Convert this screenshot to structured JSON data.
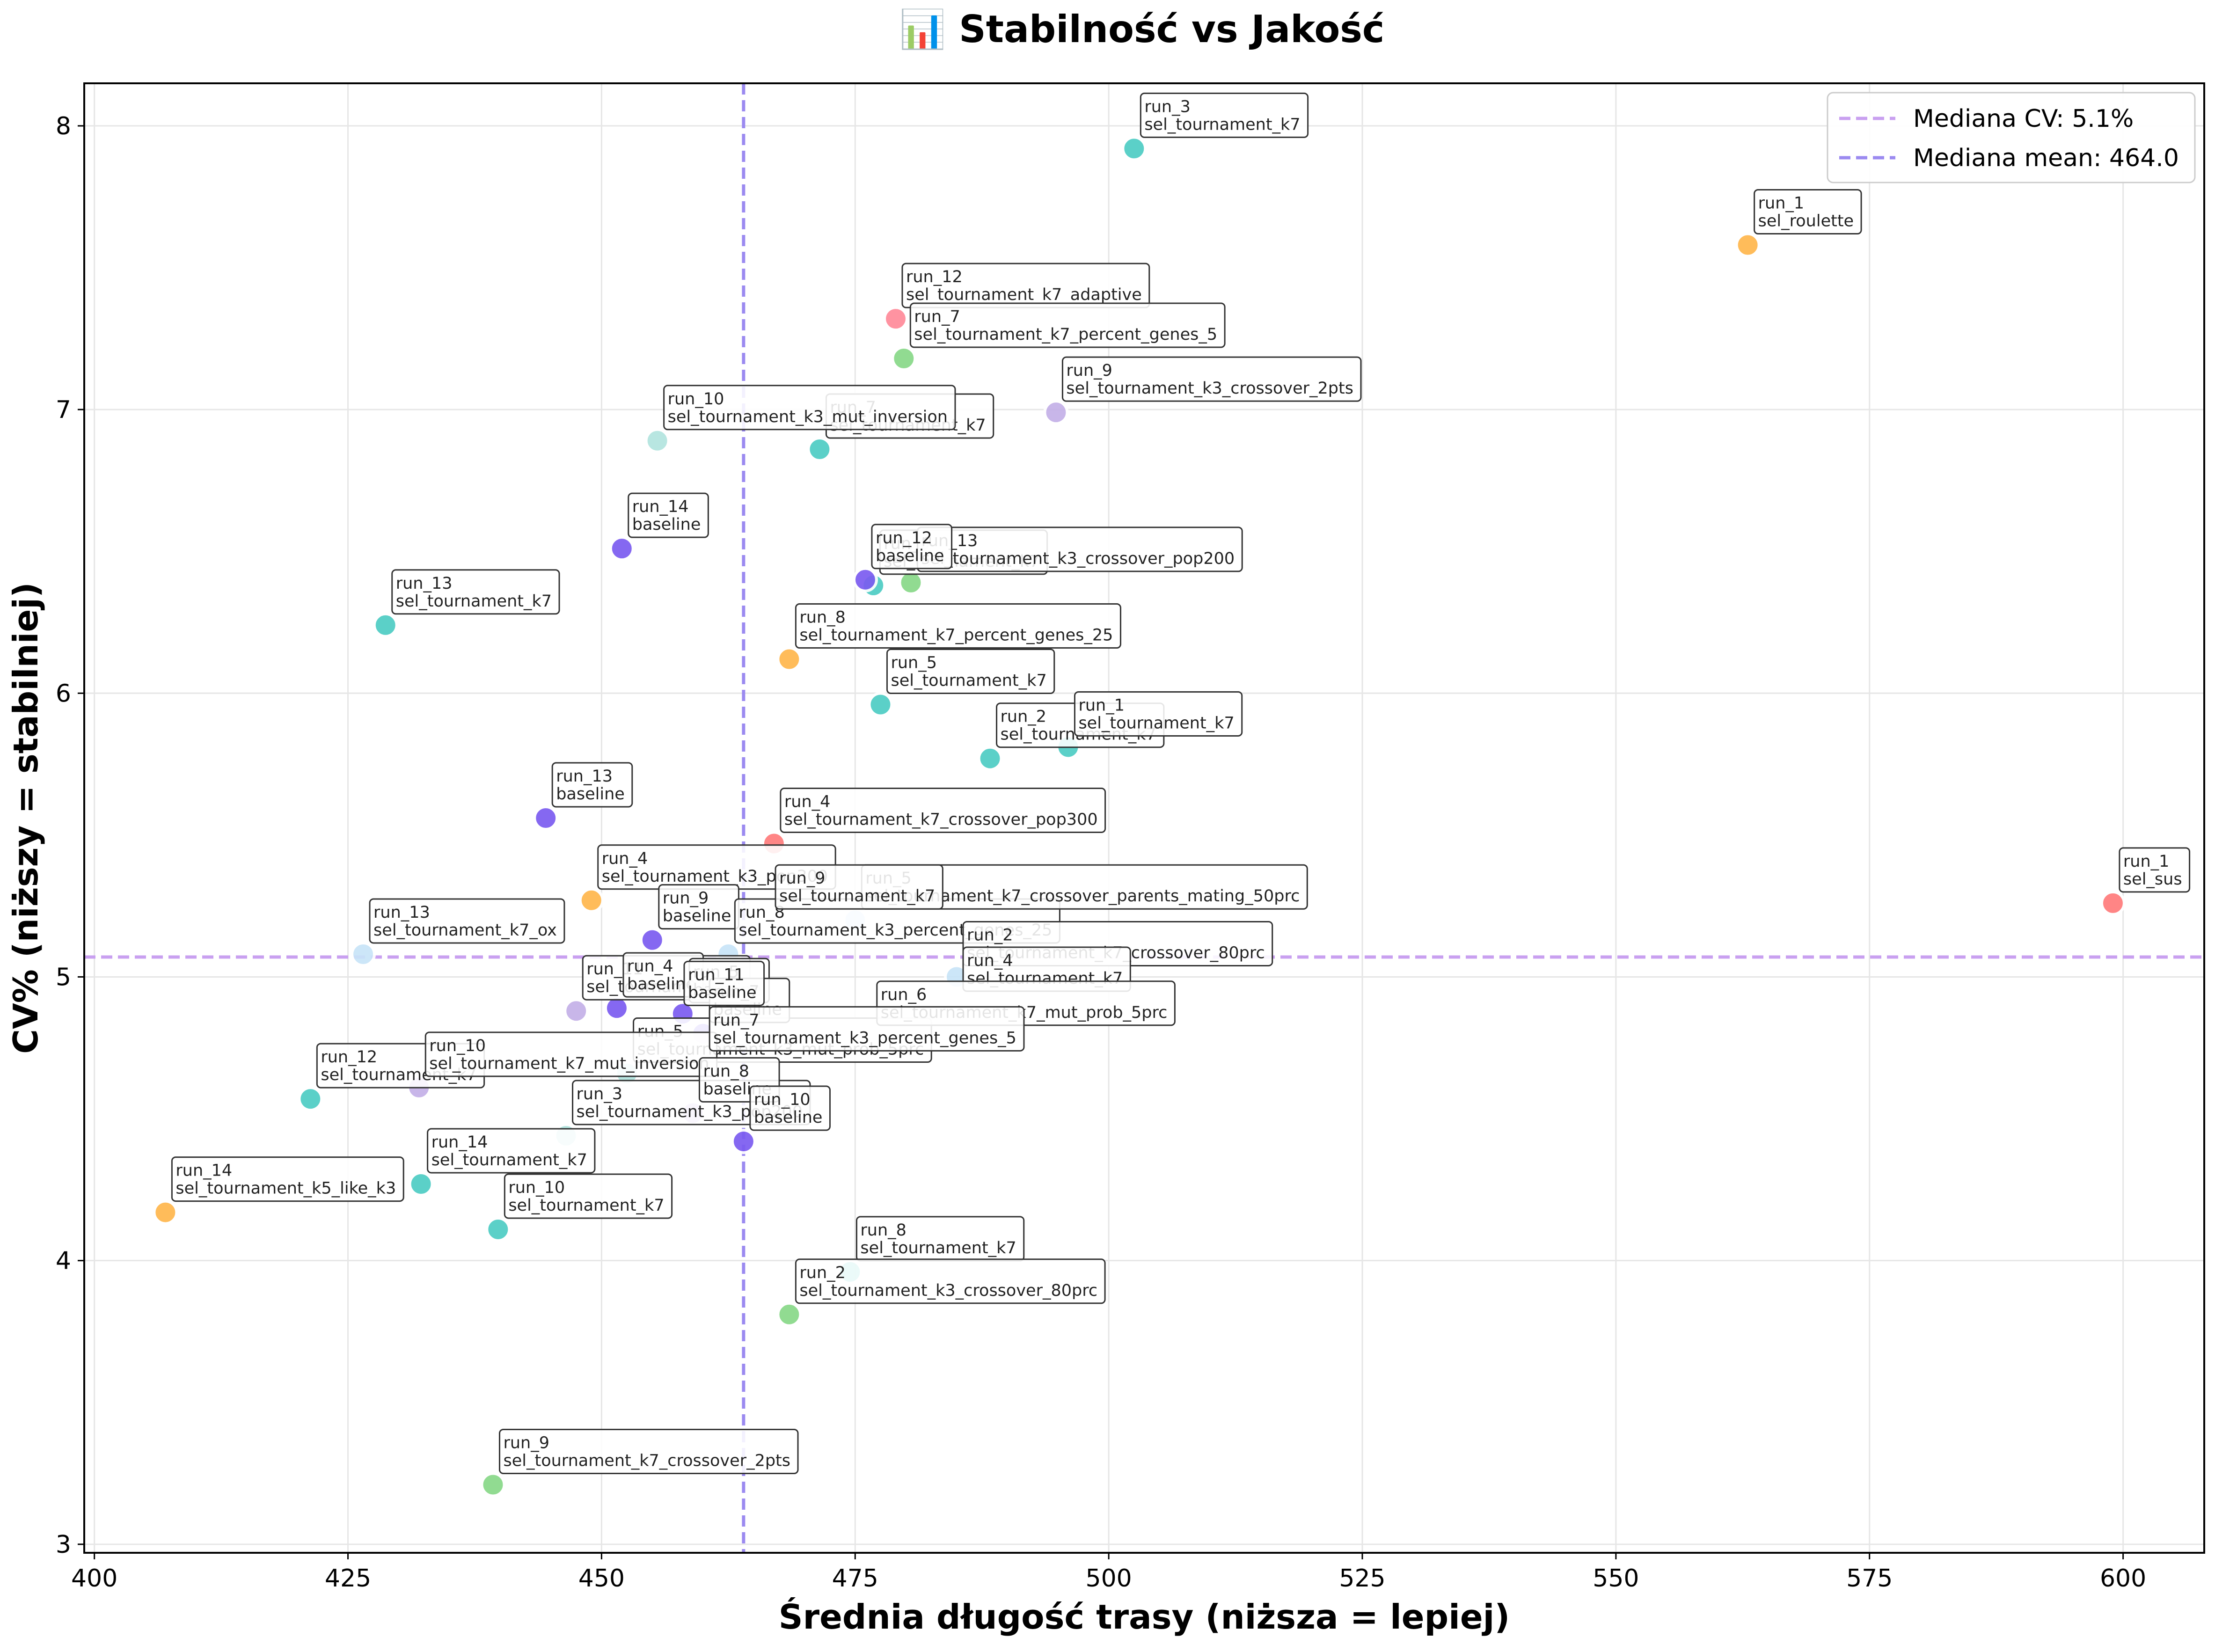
{
  "chart_data": {
    "type": "scatter",
    "title": "📊 Stabilność vs Jakość",
    "xlabel": "Średnia długość trasy (niższa = lepiej)",
    "ylabel": "CV% (niższy = stabilniej)",
    "xlim": [
      399,
      608
    ],
    "ylim": [
      2.97,
      8.15
    ],
    "xticks": [
      "400",
      "425",
      "450",
      "475",
      "500",
      "525",
      "550",
      "575",
      "600"
    ],
    "yticks": [
      "3",
      "4",
      "5",
      "6",
      "7",
      "8"
    ],
    "grid": true,
    "legend_position": "top-right",
    "reference_lines": [
      {
        "orientation": "horizontal",
        "value": 5.07,
        "color": "#c9a0f0",
        "label": "Mediana CV: 5.1%"
      },
      {
        "orientation": "vertical",
        "value": 464.0,
        "color": "#9b8af0",
        "label": "Mediana mean: 464.0"
      }
    ],
    "series": [
      {
        "color": "#ffb74d",
        "points": [
          {
            "x": 563.0,
            "y": 7.58,
            "run": "run_1",
            "config": "sel_roulette"
          },
          {
            "x": 468.5,
            "y": 6.12,
            "run": "run_8",
            "config": "sel_tournament_k7_percent_genes_25"
          },
          {
            "x": 449.0,
            "y": 5.27,
            "run": "run_4",
            "config": "sel_tournament_k3_pop300"
          },
          {
            "x": 407.0,
            "y": 4.17,
            "run": "run_14",
            "config": "sel_tournament_k5_like_k3"
          }
        ]
      },
      {
        "color": "#4ecdc4",
        "points": [
          {
            "x": 502.5,
            "y": 7.92,
            "run": "run_3",
            "config": "sel_tournament_k7"
          },
          {
            "x": 471.5,
            "y": 6.86,
            "run": "run_7",
            "config": "sel_tournament_k7"
          },
          {
            "x": 476.8,
            "y": 6.38,
            "run": "run_6",
            "config": "sel_tournament_k7"
          },
          {
            "x": 428.7,
            "y": 6.24,
            "run": "run_13",
            "config": "sel_tournament_k7"
          },
          {
            "x": 477.5,
            "y": 5.96,
            "run": "run_5",
            "config": "sel_tournament_k7"
          },
          {
            "x": 488.3,
            "y": 5.77,
            "run": "run_2",
            "config": "sel_tournament_k7"
          },
          {
            "x": 496.0,
            "y": 5.81,
            "run": "run_1",
            "config": "sel_tournament_k7"
          },
          {
            "x": 421.3,
            "y": 4.57,
            "run": "run_12",
            "config": "sel_tournament_k7"
          },
          {
            "x": 432.2,
            "y": 4.27,
            "run": "run_14",
            "config": "sel_tournament_k7"
          },
          {
            "x": 439.8,
            "y": 4.11,
            "run": "run_10",
            "config": "sel_tournament_k7"
          },
          {
            "x": 474.5,
            "y": 3.96,
            "run": "run_8",
            "config": "sel_tournament_k7"
          }
        ]
      },
      {
        "color": "#b2e4df",
        "points": [
          {
            "x": 455.5,
            "y": 6.89,
            "run": "run_10",
            "config": "sel_tournament_k3_mut_inversion"
          },
          {
            "x": 452.5,
            "y": 4.66,
            "run": "run_5",
            "config": "sel_tournament_k3_mut_prob_5prc"
          },
          {
            "x": 446.5,
            "y": 4.44,
            "run": "run_3",
            "config": "sel_tournament_k3_pop200"
          }
        ]
      },
      {
        "color": "#ff8a9a",
        "points": [
          {
            "x": 479.0,
            "y": 7.32,
            "run": "run_12",
            "config": "sel_tournament_k7_adaptive"
          }
        ]
      },
      {
        "color": "#88d888",
        "points": [
          {
            "x": 479.8,
            "y": 7.18,
            "run": "run_7",
            "config": "sel_tournament_k7_percent_genes_5"
          },
          {
            "x": 480.5,
            "y": 6.39,
            "run": "run_13",
            "config": "sel_tournament_k3_crossover_pop200"
          },
          {
            "x": 468.5,
            "y": 3.81,
            "run": "run_2",
            "config": "sel_tournament_k3_crossover_80prc"
          },
          {
            "x": 439.3,
            "y": 3.21,
            "run": "run_9",
            "config": "sel_tournament_k7_crossover_2pts"
          }
        ]
      },
      {
        "color": "#c4b0e8",
        "points": [
          {
            "x": 494.8,
            "y": 6.99,
            "run": "run_9",
            "config": "sel_tournament_k3_crossover_2pts"
          },
          {
            "x": 447.5,
            "y": 4.88,
            "run": "run_11",
            "config": "sel_tournament_k7"
          },
          {
            "x": 432.0,
            "y": 4.61,
            "run": "run_10",
            "config": "sel_tournament_k7_mut_inversion"
          },
          {
            "x": 459.0,
            "y": 4.52,
            "run": "run_8",
            "config": "baseline"
          }
        ]
      },
      {
        "color": "#7b5cf0",
        "points": [
          {
            "x": 452.0,
            "y": 6.51,
            "run": "run_14",
            "config": "baseline"
          },
          {
            "x": 476.0,
            "y": 6.4,
            "run": "run_12",
            "config": "baseline"
          },
          {
            "x": 444.5,
            "y": 5.56,
            "run": "run_13",
            "config": "baseline"
          },
          {
            "x": 455.0,
            "y": 5.13,
            "run": "run_9",
            "config": "baseline"
          },
          {
            "x": 451.5,
            "y": 4.89,
            "run": "run_4",
            "config": "baseline"
          },
          {
            "x": 458.0,
            "y": 4.87,
            "run": "run_5",
            "config": "baseline"
          },
          {
            "x": 460.0,
            "y": 4.8,
            "run": "run_7",
            "config": "baseline"
          },
          {
            "x": 464.0,
            "y": 4.42,
            "run": "run_10",
            "config": "baseline"
          }
        ]
      },
      {
        "color": "#ff7b7b",
        "points": [
          {
            "x": 599.0,
            "y": 5.26,
            "run": "run_1",
            "config": "sel_sus"
          },
          {
            "x": 467.0,
            "y": 5.47,
            "run": "run_4",
            "config": "sel_tournament_k7_crossover_pop300"
          }
        ]
      },
      {
        "color": "#c8e4f8",
        "points": [
          {
            "x": 426.5,
            "y": 5.08,
            "run": "run_13",
            "config": "sel_tournament_k7_ox"
          },
          {
            "x": 462.5,
            "y": 5.08,
            "run": "run_8",
            "config": "sel_tournament_k3_percent_genes_25"
          },
          {
            "x": 475.0,
            "y": 5.2,
            "run": "run_5",
            "config": "sel_tournament_k7_crossover_parents_mating_50prc"
          },
          {
            "x": 485.0,
            "y": 5.0,
            "run": "run_2",
            "config": "sel_tournament_k7_crossover_80prc"
          }
        ]
      }
    ],
    "extra_labels": [
      {
        "x": 466.5,
        "y": 5.2,
        "run": "run_9",
        "config": "sel_tournament_k7"
      },
      {
        "x": 485.0,
        "y": 4.91,
        "run": "run_4",
        "config": "sel_tournament_k7"
      },
      {
        "x": 476.5,
        "y": 4.79,
        "run": "run_6",
        "config": "sel_tournament_k7_mut_prob_5prc"
      },
      {
        "x": 460.0,
        "y": 4.7,
        "run": "run_7",
        "config": "sel_tournament_k3_percent_genes_5"
      },
      {
        "x": 457.5,
        "y": 4.86,
        "run": "run_11",
        "config": "baseline"
      }
    ]
  }
}
